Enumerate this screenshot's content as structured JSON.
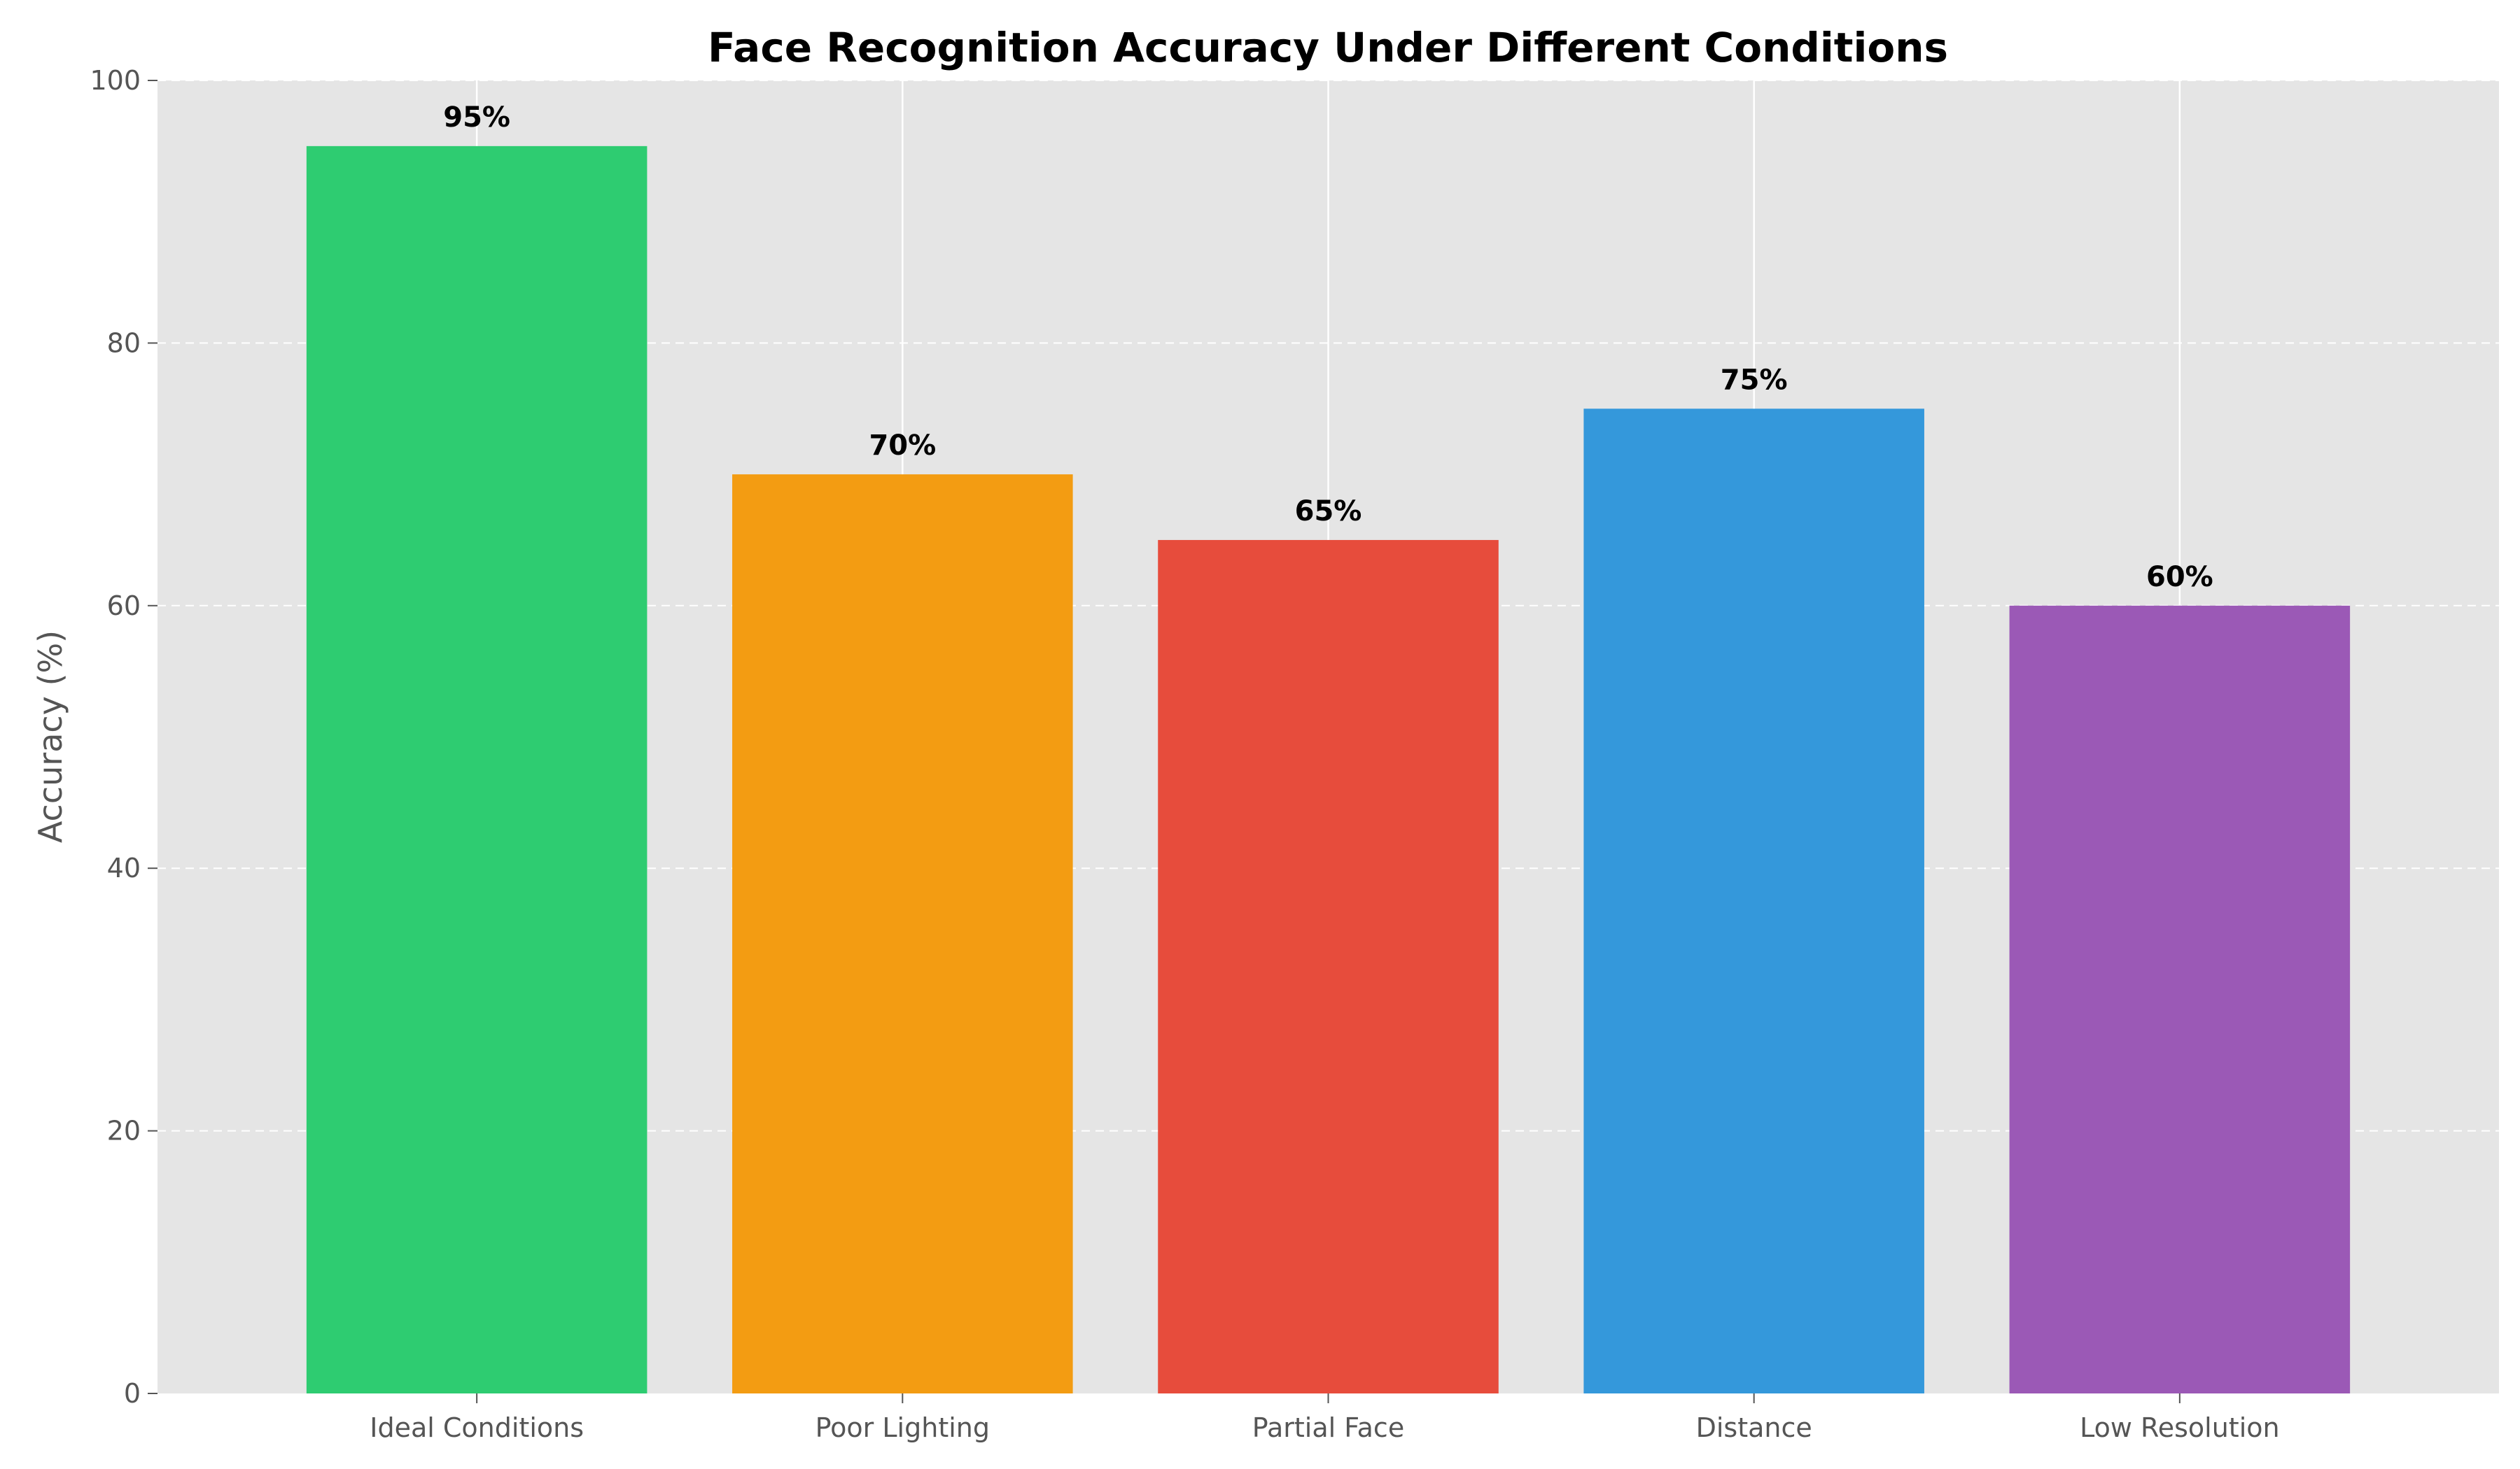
{
  "chart_data": {
    "type": "bar",
    "title": "Face Recognition Accuracy Under Different Conditions",
    "xlabel": "",
    "ylabel": "Accuracy (%)",
    "categories": [
      "Ideal Conditions",
      "Poor Lighting",
      "Partial Face",
      "Distance",
      "Low Resolution"
    ],
    "values": [
      95,
      70,
      65,
      75,
      60
    ],
    "data_labels": [
      "95%",
      "70%",
      "65%",
      "75%",
      "60%"
    ],
    "colors": [
      "#2ecc71",
      "#f39c12",
      "#e74c3c",
      "#3498db",
      "#9b59b6"
    ],
    "ylim": [
      0,
      100
    ],
    "yticks": [
      0,
      20,
      40,
      60,
      80,
      100
    ],
    "ytick_labels": [
      "0",
      "20",
      "40",
      "60",
      "80",
      "100"
    ],
    "grid": {
      "y": "dashed",
      "x": "solid"
    },
    "background": "#e5e5e5",
    "legend": "none"
  }
}
